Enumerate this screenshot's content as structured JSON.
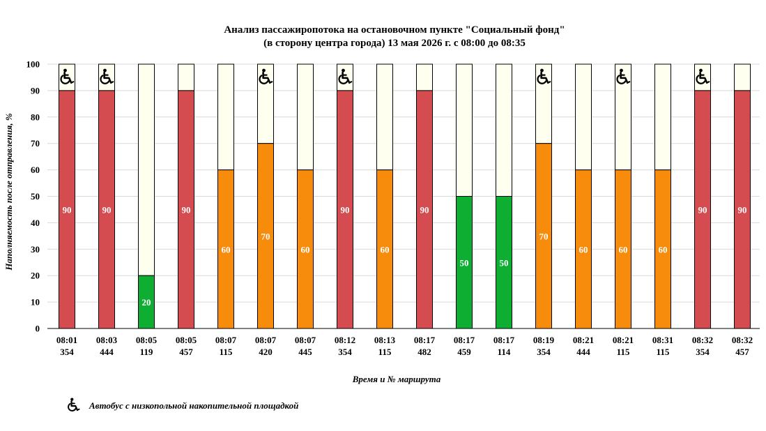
{
  "chart_data": {
    "type": "bar",
    "stacked": true,
    "title": "Анализ пассажиропотока на остановочном пункте \"Социальный фонд\"",
    "subtitle": "(в сторону центра города) 13 мая 2026 г. с 08:00 до 08:35",
    "xlabel": "Время и № маршрута",
    "ylabel": "Наполняемость после отправления, %",
    "ylim": [
      0,
      100
    ],
    "yticks": [
      0,
      10,
      20,
      30,
      40,
      50,
      60,
      70,
      80,
      90,
      100
    ],
    "grid": true,
    "categories": [
      {
        "time": "08:01",
        "route": "354"
      },
      {
        "time": "08:03",
        "route": "444"
      },
      {
        "time": "08:05",
        "route": "119"
      },
      {
        "time": "08:05",
        "route": "457"
      },
      {
        "time": "08:07",
        "route": "115"
      },
      {
        "time": "08:07",
        "route": "420"
      },
      {
        "time": "08:07",
        "route": "445"
      },
      {
        "time": "08:12",
        "route": "354"
      },
      {
        "time": "08:13",
        "route": "115"
      },
      {
        "time": "08:17",
        "route": "482"
      },
      {
        "time": "08:17",
        "route": "459"
      },
      {
        "time": "08:17",
        "route": "114"
      },
      {
        "time": "08:19",
        "route": "354"
      },
      {
        "time": "08:21",
        "route": "444"
      },
      {
        "time": "08:21",
        "route": "115"
      },
      {
        "time": "08:31",
        "route": "115"
      },
      {
        "time": "08:32",
        "route": "354"
      },
      {
        "time": "08:32",
        "route": "457"
      }
    ],
    "values": [
      90,
      90,
      20,
      90,
      60,
      70,
      60,
      90,
      60,
      90,
      50,
      50,
      70,
      60,
      60,
      60,
      90,
      90
    ],
    "low_floor": [
      true,
      true,
      false,
      false,
      false,
      true,
      false,
      true,
      false,
      false,
      false,
      false,
      true,
      false,
      true,
      false,
      true,
      false
    ],
    "colors": {
      "high": "#d44c4f",
      "medium": "#f78b0c",
      "low": "#0eae33",
      "empty": "#fffff0",
      "grid": "#d9d9d9",
      "outline": "#000000"
    },
    "legend": {
      "icon": "wheelchair-icon",
      "label": "Автобус с низкопольной накопительной площадкой",
      "position": "bottom-left"
    }
  }
}
